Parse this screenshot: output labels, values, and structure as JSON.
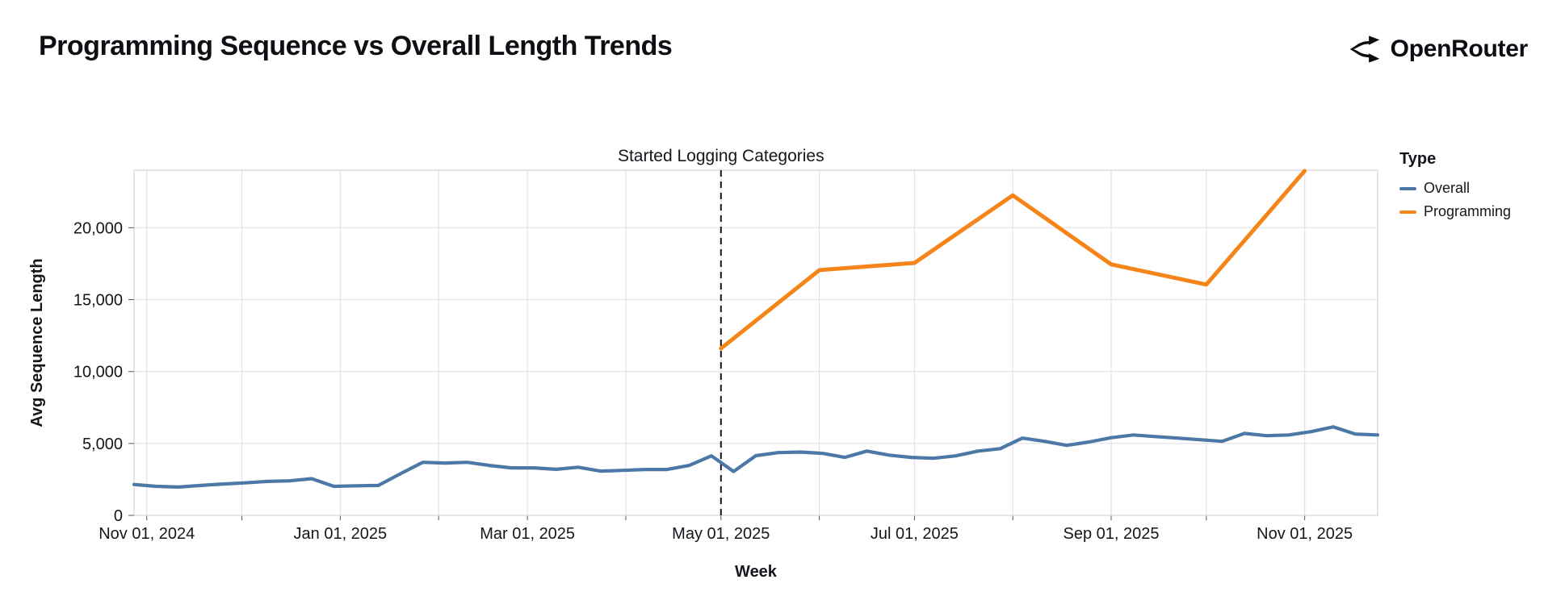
{
  "header": {
    "title": "Programming Sequence vs Overall Length Trends",
    "brand": "OpenRouter"
  },
  "legend": {
    "title": "Type",
    "items": [
      {
        "label": "Overall",
        "color": "#4c78a8"
      },
      {
        "label": "Programming",
        "color": "#f58518"
      }
    ]
  },
  "chart_data": {
    "type": "line",
    "title": "Programming Sequence vs Overall Length Trends",
    "xlabel": "Week",
    "ylabel": "Avg Sequence Length",
    "ylim": [
      0,
      24000
    ],
    "y_ticks": [
      0,
      5000,
      10000,
      15000,
      20000
    ],
    "x_domain": [
      "2024-10-28",
      "2025-11-24"
    ],
    "x_month_gridlines": [
      "2024-11-01",
      "2024-12-01",
      "2025-01-01",
      "2025-02-01",
      "2025-03-01",
      "2025-04-01",
      "2025-05-01",
      "2025-06-01",
      "2025-07-01",
      "2025-08-01",
      "2025-09-01",
      "2025-10-01",
      "2025-11-01"
    ],
    "x_tick_labels": [
      {
        "date": "2024-11-01",
        "label": "Nov 01, 2024"
      },
      {
        "date": "2025-01-01",
        "label": "Jan 01, 2025"
      },
      {
        "date": "2025-03-01",
        "label": "Mar 01, 2025"
      },
      {
        "date": "2025-05-01",
        "label": "May 01, 2025"
      },
      {
        "date": "2025-07-01",
        "label": "Jul 01, 2025"
      },
      {
        "date": "2025-09-01",
        "label": "Sep 01, 2025"
      },
      {
        "date": "2025-11-01",
        "label": "Nov 01, 2025"
      }
    ],
    "annotation": {
      "date": "2025-05-01",
      "label": "Started Logging Categories"
    },
    "grid": true,
    "legend_position": "right",
    "series": [
      {
        "name": "Overall",
        "color": "#4c78a8",
        "points": [
          [
            "2024-10-28",
            2150
          ],
          [
            "2024-11-04",
            2020
          ],
          [
            "2024-11-11",
            1970
          ],
          [
            "2024-11-18",
            2080
          ],
          [
            "2024-11-25",
            2180
          ],
          [
            "2024-12-02",
            2260
          ],
          [
            "2024-12-09",
            2360
          ],
          [
            "2024-12-16",
            2400
          ],
          [
            "2024-12-23",
            2550
          ],
          [
            "2024-12-30",
            2020
          ],
          [
            "2025-01-06",
            2060
          ],
          [
            "2025-01-13",
            2080
          ],
          [
            "2025-01-20",
            2900
          ],
          [
            "2025-01-27",
            3690
          ],
          [
            "2025-02-03",
            3640
          ],
          [
            "2025-02-10",
            3690
          ],
          [
            "2025-02-17",
            3470
          ],
          [
            "2025-02-24",
            3300
          ],
          [
            "2025-03-03",
            3300
          ],
          [
            "2025-03-10",
            3200
          ],
          [
            "2025-03-17",
            3350
          ],
          [
            "2025-03-24",
            3080
          ],
          [
            "2025-03-31",
            3130
          ],
          [
            "2025-04-07",
            3190
          ],
          [
            "2025-04-14",
            3190
          ],
          [
            "2025-04-21",
            3470
          ],
          [
            "2025-04-28",
            4140
          ],
          [
            "2025-05-05",
            3050
          ],
          [
            "2025-05-12",
            4150
          ],
          [
            "2025-05-19",
            4360
          ],
          [
            "2025-05-26",
            4400
          ],
          [
            "2025-06-02",
            4310
          ],
          [
            "2025-06-09",
            4030
          ],
          [
            "2025-06-16",
            4470
          ],
          [
            "2025-06-23",
            4190
          ],
          [
            "2025-06-30",
            4030
          ],
          [
            "2025-07-07",
            3970
          ],
          [
            "2025-07-14",
            4140
          ],
          [
            "2025-07-21",
            4470
          ],
          [
            "2025-07-28",
            4640
          ],
          [
            "2025-08-04",
            5370
          ],
          [
            "2025-08-11",
            5150
          ],
          [
            "2025-08-18",
            4870
          ],
          [
            "2025-08-25",
            5100
          ],
          [
            "2025-09-01",
            5400
          ],
          [
            "2025-09-08",
            5590
          ],
          [
            "2025-09-15",
            5480
          ],
          [
            "2025-09-22",
            5370
          ],
          [
            "2025-09-29",
            5260
          ],
          [
            "2025-10-06",
            5150
          ],
          [
            "2025-10-13",
            5700
          ],
          [
            "2025-10-20",
            5540
          ],
          [
            "2025-10-27",
            5590
          ],
          [
            "2025-11-03",
            5820
          ],
          [
            "2025-11-10",
            6150
          ],
          [
            "2025-11-17",
            5650
          ],
          [
            "2025-11-24",
            5590
          ]
        ]
      },
      {
        "name": "Programming",
        "color": "#f58518",
        "points": [
          [
            "2025-05-01",
            11600
          ],
          [
            "2025-06-01",
            17050
          ],
          [
            "2025-07-01",
            17550
          ],
          [
            "2025-08-01",
            22250
          ],
          [
            "2025-09-01",
            17450
          ],
          [
            "2025-10-01",
            16050
          ],
          [
            "2025-11-01",
            23950
          ]
        ]
      }
    ]
  },
  "colors": {
    "grid": "#e2e2ea",
    "plot_border": "#d9d9e2",
    "tick": "#55555f",
    "text": "#15151c",
    "annotation_line": "#14141c"
  }
}
